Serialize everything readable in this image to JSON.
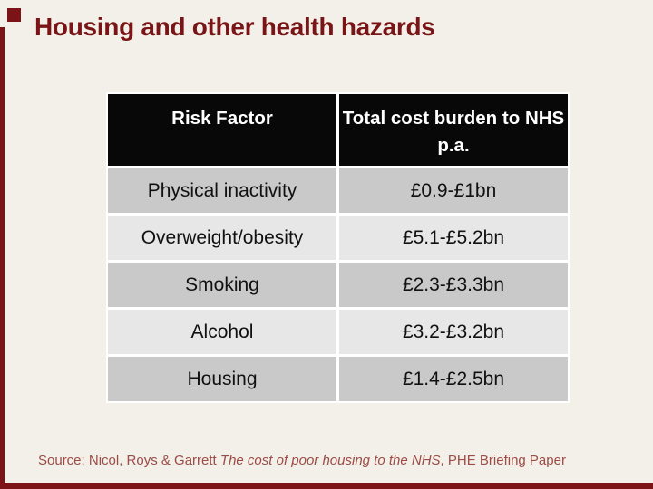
{
  "slide": {
    "title": "Housing and other health hazards"
  },
  "theme": {
    "background": "#F2F0E9",
    "accent_red": "#7A1416",
    "header_bg": "#080808",
    "header_text": "#FFFFFF",
    "row_dark": "#C9C9C9",
    "row_light": "#E7E7E7",
    "cell_text": "#111111",
    "source_text": "#9E4A45"
  },
  "table": {
    "columns": [
      "Risk Factor",
      "Total cost burden to NHS p.a."
    ],
    "rows": [
      {
        "risk_factor": "Physical inactivity",
        "cost": "£0.9-£1bn"
      },
      {
        "risk_factor": "Overweight/obesity",
        "cost": "£5.1-£5.2bn"
      },
      {
        "risk_factor": "Smoking",
        "cost": "£2.3-£3.3bn"
      },
      {
        "risk_factor": "Alcohol",
        "cost": "£3.2-£3.2bn"
      },
      {
        "risk_factor": "Housing",
        "cost": "£1.4-£2.5bn"
      }
    ]
  },
  "source": {
    "prefix": "Source: Nicol, Roys & Garrett ",
    "italic_title": "The cost of poor housing to the NHS",
    "suffix": ", PHE Briefing Paper"
  }
}
